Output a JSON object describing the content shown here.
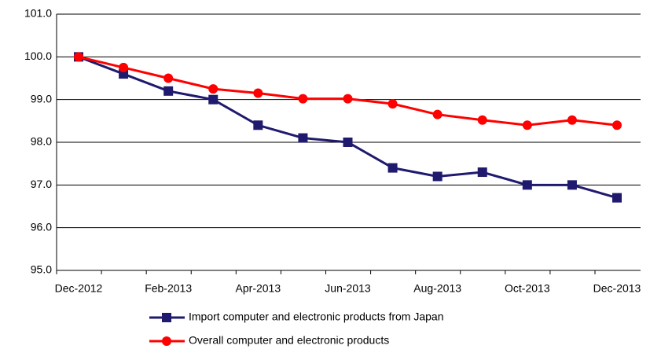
{
  "chart_data": {
    "type": "line",
    "categories": [
      "Dec-2012",
      null,
      "Feb-2013",
      null,
      "Apr-2013",
      null,
      "Jun-2013",
      null,
      "Aug-2013",
      null,
      "Oct-2013",
      null,
      "Dec-2013"
    ],
    "series": [
      {
        "name": "Import computer and electronic products from Japan",
        "color": "#1f1a6e",
        "marker": "square",
        "values": [
          100.0,
          99.6,
          99.2,
          99.0,
          98.4,
          98.1,
          98.0,
          97.4,
          97.2,
          97.3,
          97.0,
          97.0,
          96.7
        ]
      },
      {
        "name": "Overall computer and electronic products",
        "color": "#ff0000",
        "marker": "circle",
        "values": [
          100.0,
          99.75,
          99.5,
          99.25,
          99.15,
          99.02,
          99.02,
          98.9,
          98.65,
          98.52,
          98.4,
          98.52,
          98.4
        ]
      }
    ],
    "ylim": [
      95,
      101
    ],
    "yticks": [
      {
        "value": 95,
        "label": "95.0"
      },
      {
        "value": 96,
        "label": "96.0"
      },
      {
        "value": 97,
        "label": "97.0"
      },
      {
        "value": 98,
        "label": "98.0"
      },
      {
        "value": 99,
        "label": "99.0"
      },
      {
        "value": 100,
        "label": "100.0"
      },
      {
        "value": 101,
        "label": "101.0"
      }
    ],
    "grid": true,
    "legend": "bottom"
  }
}
